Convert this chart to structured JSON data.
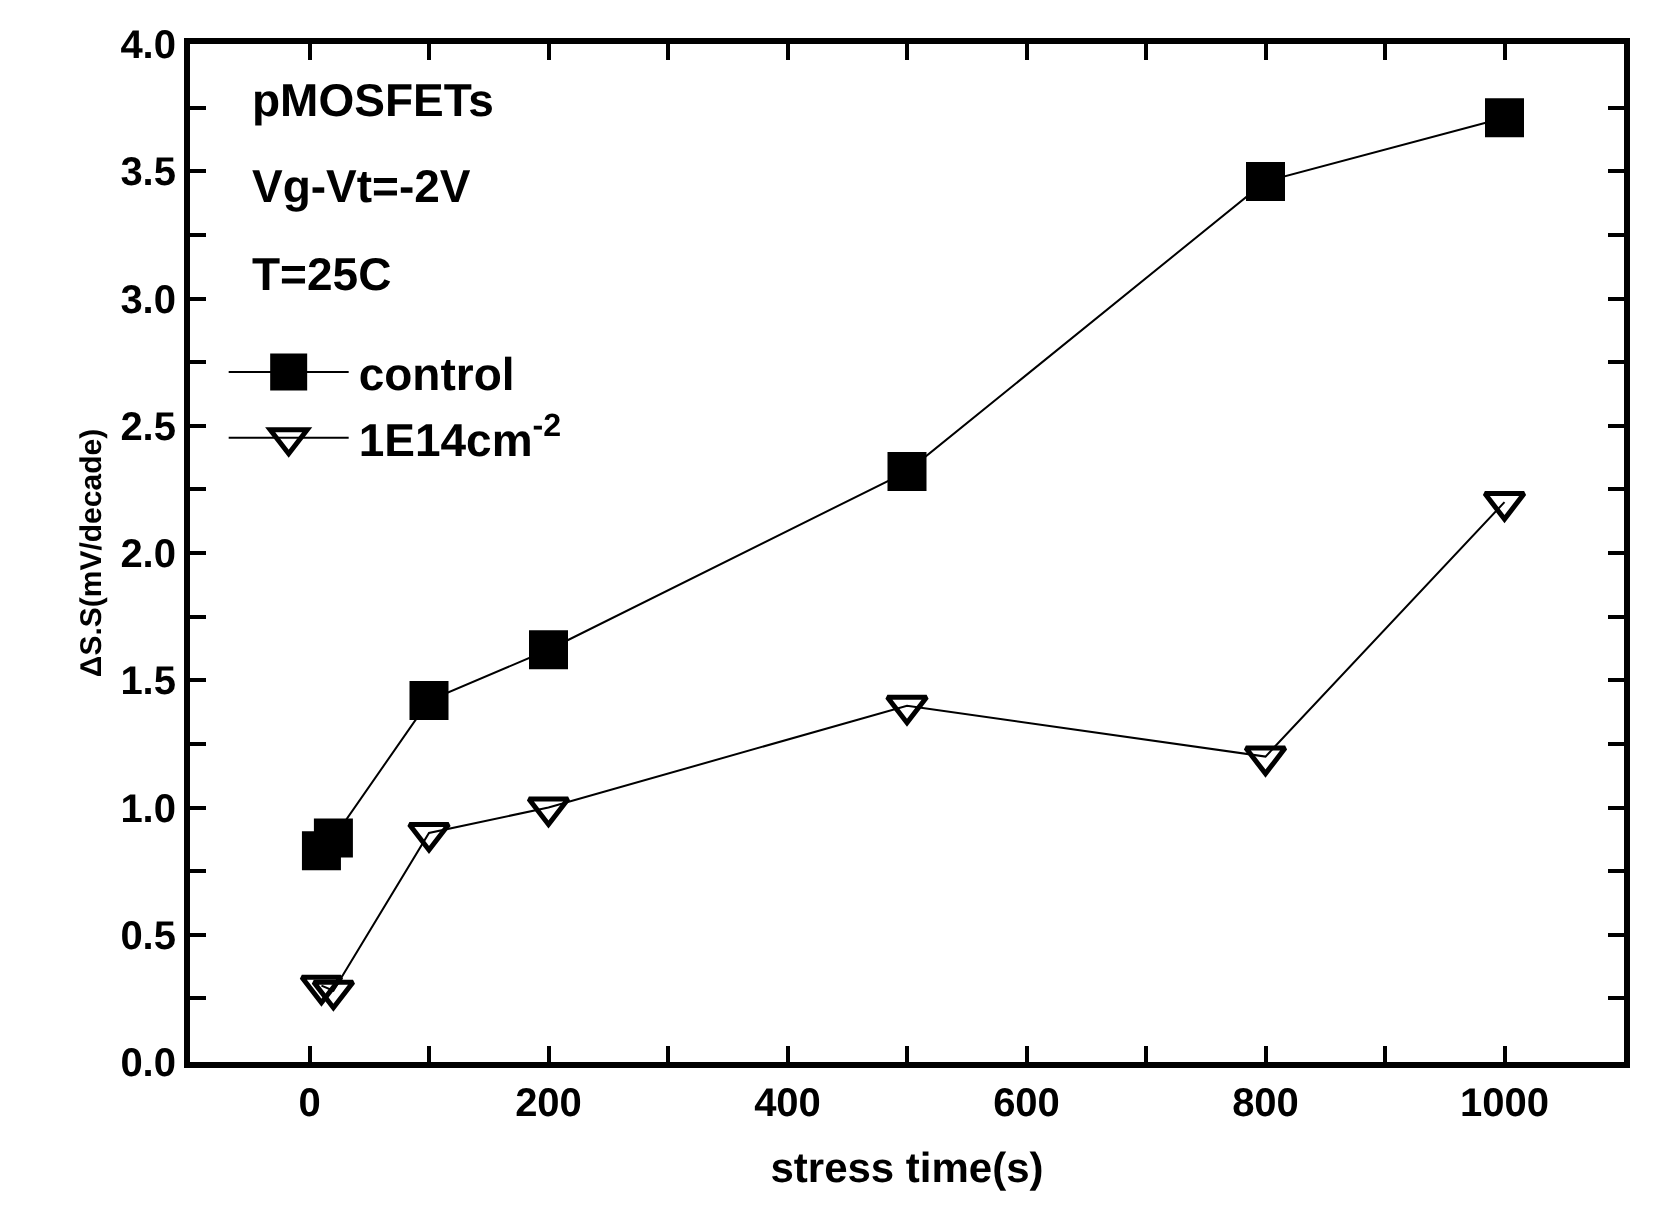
{
  "chart_data": {
    "type": "line",
    "xlabel": "stress time(s)",
    "ylabel": "ΔS.S(mV/decade)",
    "x": [
      10,
      20,
      100,
      200,
      500,
      800,
      1000
    ],
    "series": [
      {
        "name": "control",
        "color": "#000000",
        "marker": "square",
        "values": [
          0.83,
          0.88,
          1.42,
          1.62,
          2.32,
          3.46,
          3.71
        ]
      },
      {
        "name": "1E14cm$^{-2}$",
        "color": "#000000",
        "marker": "triangle-down",
        "values": [
          0.3,
          0.28,
          0.9,
          1.0,
          1.4,
          1.2,
          2.2
        ]
      }
    ],
    "annotations": [
      "pMOSFETs",
      "Vg-Vt=-2V",
      "T=25C"
    ],
    "xlim": [
      -100,
      1100
    ],
    "xticks": [
      {
        "value": -100,
        "label": null
      },
      0,
      {
        "value": 100,
        "label": null
      },
      200,
      {
        "value": 300,
        "label": null
      },
      400,
      {
        "value": 500,
        "label": null
      },
      600,
      {
        "value": 700,
        "label": null
      },
      800,
      {
        "value": 900,
        "label": null
      },
      1000,
      {
        "value": 1100,
        "label": null
      }
    ],
    "ylim": [
      0,
      4
    ],
    "yticks": [
      {
        "value": 0,
        "label": "0.0"
      },
      {
        "value": 0.25,
        "label": null
      },
      {
        "value": 0.5,
        "label": "0.5"
      },
      {
        "value": 0.75,
        "label": null
      },
      {
        "value": 1,
        "label": "1.0"
      },
      {
        "value": 1.25,
        "label": null
      },
      {
        "value": 1.5,
        "label": "1.5"
      },
      {
        "value": 1.75,
        "label": null
      },
      {
        "value": 2,
        "label": "2.0"
      },
      {
        "value": 2.25,
        "label": null
      },
      {
        "value": 2.5,
        "label": "2.5"
      },
      {
        "value": 2.75,
        "label": null
      },
      {
        "value": 3,
        "label": "3.0"
      },
      {
        "value": 3.25,
        "label": null
      },
      {
        "value": 3.5,
        "label": "3.5"
      },
      {
        "value": 3.75,
        "label": null
      },
      {
        "value": 4,
        "label": "4.0"
      }
    ],
    "legend": "top left",
    "line_style": "solid"
  }
}
